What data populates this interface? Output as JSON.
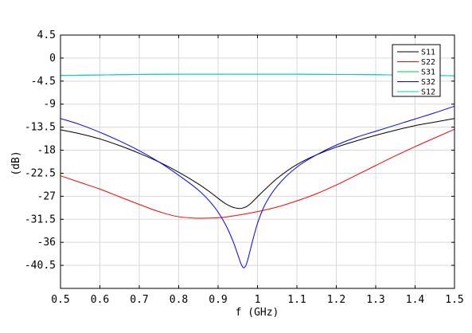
{
  "chart_data": {
    "type": "line",
    "title": "",
    "xlabel": "f (GHz)",
    "ylabel": "(dB)",
    "xlim": [
      0.5,
      1.5
    ],
    "ylim": [
      -45,
      4.5
    ],
    "x_ticks": [
      0.5,
      0.6,
      0.7,
      0.8,
      0.9,
      1.0,
      1.1,
      1.2,
      1.3,
      1.4,
      1.5
    ],
    "x_tick_labels": [
      "0.5",
      "0.6",
      "0.7",
      "0.8",
      "0.9",
      "1",
      "1.1",
      "1.2",
      "1.3",
      "1.4",
      "1.5"
    ],
    "y_ticks": [
      4.5,
      0,
      -4.5,
      -9,
      -13.5,
      -18,
      -22.5,
      -27,
      -31.5,
      -36,
      -40.5
    ],
    "y_tick_labels": [
      "4.5",
      "0",
      "-4.5",
      "-9",
      "-13.5",
      "-18",
      "-22.5",
      "-27",
      "-31.5",
      "-36",
      "-40.5"
    ],
    "grid": true,
    "legend_position": "top-right",
    "series": [
      {
        "name": "S11",
        "color": "#000000",
        "x": [
          0.5,
          0.55,
          0.6,
          0.65,
          0.7,
          0.75,
          0.8,
          0.85,
          0.88,
          0.9,
          0.92,
          0.94,
          0.955,
          0.97,
          0.98,
          1.0,
          1.02,
          1.05,
          1.1,
          1.15,
          1.2,
          1.25,
          1.3,
          1.35,
          1.4,
          1.45,
          1.5
        ],
        "y": [
          -14,
          -14.8,
          -15.8,
          -17.1,
          -18.6,
          -20.3,
          -22.3,
          -24.6,
          -26.2,
          -27.4,
          -28.5,
          -29.2,
          -29.4,
          -29.1,
          -28.6,
          -27.1,
          -25.6,
          -23.5,
          -20.8,
          -18.9,
          -17.4,
          -16.2,
          -15.1,
          -14.1,
          -13.2,
          -12.5,
          -11.8
        ]
      },
      {
        "name": "S22",
        "color": "#ff0000",
        "x": [
          0.5,
          0.55,
          0.6,
          0.65,
          0.7,
          0.75,
          0.8,
          0.85,
          0.9,
          0.95,
          1.0,
          1.05,
          1.1,
          1.15,
          1.2,
          1.25,
          1.3,
          1.35,
          1.4,
          1.45,
          1.5
        ],
        "y": [
          -23,
          -24.3,
          -25.6,
          -27.1,
          -28.6,
          -30.0,
          -31.0,
          -31.3,
          -31.2,
          -30.7,
          -30.0,
          -29.1,
          -27.9,
          -26.5,
          -24.8,
          -22.9,
          -21.0,
          -19.1,
          -17.3,
          -15.6,
          -13.9
        ]
      },
      {
        "name": "S31",
        "color": "#00cc33",
        "x": [
          0.5,
          0.6,
          0.7,
          0.8,
          0.9,
          1.0,
          1.1,
          1.2,
          1.3,
          1.4,
          1.5
        ],
        "y": [
          -3.4,
          -3.3,
          -3.2,
          -3.15,
          -3.15,
          -3.15,
          -3.15,
          -3.2,
          -3.25,
          -3.35,
          -3.45
        ]
      },
      {
        "name": "S32",
        "color": "#0000ff",
        "x": [
          0.5,
          0.55,
          0.6,
          0.65,
          0.7,
          0.75,
          0.8,
          0.85,
          0.88,
          0.9,
          0.92,
          0.94,
          0.95,
          0.96,
          0.965,
          0.97,
          0.975,
          0.98,
          0.99,
          1.0,
          1.02,
          1.05,
          1.1,
          1.15,
          1.2,
          1.25,
          1.3,
          1.35,
          1.4,
          1.45,
          1.5
        ],
        "y": [
          -11.8,
          -13.0,
          -14.5,
          -16.2,
          -18.1,
          -20.3,
          -22.9,
          -25.8,
          -28.1,
          -30.1,
          -32.7,
          -36.2,
          -38.4,
          -40.5,
          -41.0,
          -40.6,
          -39.5,
          -38.0,
          -35.0,
          -32.3,
          -28.5,
          -25.0,
          -21.3,
          -18.9,
          -17.0,
          -15.5,
          -14.3,
          -13.1,
          -11.9,
          -10.7,
          -9.4
        ]
      },
      {
        "name": "S12",
        "color": "#00cccc",
        "x": [
          0.5,
          0.6,
          0.7,
          0.8,
          0.9,
          1.0,
          1.1,
          1.2,
          1.3,
          1.4,
          1.5
        ],
        "y": [
          -3.4,
          -3.3,
          -3.2,
          -3.15,
          -3.15,
          -3.15,
          -3.15,
          -3.2,
          -3.25,
          -3.35,
          -3.45
        ]
      }
    ]
  }
}
